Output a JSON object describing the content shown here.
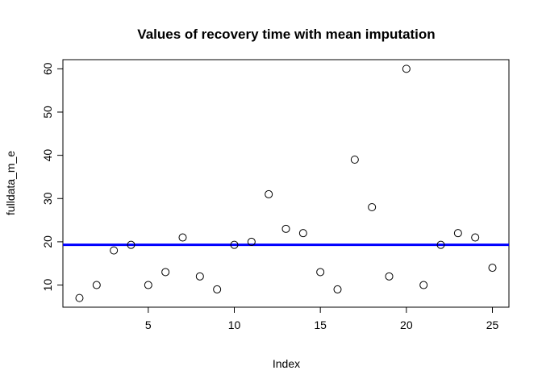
{
  "chart_data": {
    "type": "scatter",
    "title": "Values of recovery time with mean imputation",
    "xlabel": "Index",
    "ylabel": "fulldata_m_e",
    "xlim": [
      0.04,
      25.96
    ],
    "ylim": [
      4.88,
      62.12
    ],
    "xticks": [
      5,
      10,
      15,
      20,
      25
    ],
    "yticks": [
      10,
      20,
      30,
      40,
      50,
      60
    ],
    "x": [
      1,
      2,
      3,
      4,
      5,
      6,
      7,
      8,
      9,
      10,
      11,
      12,
      13,
      14,
      15,
      16,
      17,
      18,
      19,
      20,
      21,
      22,
      23,
      24,
      25
    ],
    "y": [
      7,
      10,
      18,
      19.3,
      10,
      13,
      21,
      12,
      9,
      19.3,
      20,
      31,
      23,
      22,
      13,
      9,
      39,
      28,
      12,
      60,
      10,
      19.3,
      22,
      21,
      14
    ],
    "hline": {
      "y": 19.3,
      "color": "#0000ff"
    },
    "marker": "open-circle",
    "grid": false,
    "legend": "none"
  }
}
